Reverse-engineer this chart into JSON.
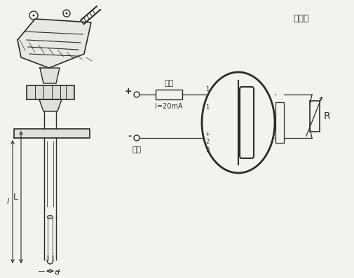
{
  "bg_color": "#f2f2ee",
  "line_color": "#2a2a2a",
  "label_fubai": "负载",
  "label_dianyuan": "电源",
  "label_redianzhu": "热电阻",
  "label_current": "I=20mA",
  "label_plus": "+",
  "label_minus": "-",
  "label_R": "R",
  "label_L": "L",
  "label_l": "l",
  "label_d": "d",
  "label_1": "1",
  "label_2": "2",
  "label_3": "3"
}
